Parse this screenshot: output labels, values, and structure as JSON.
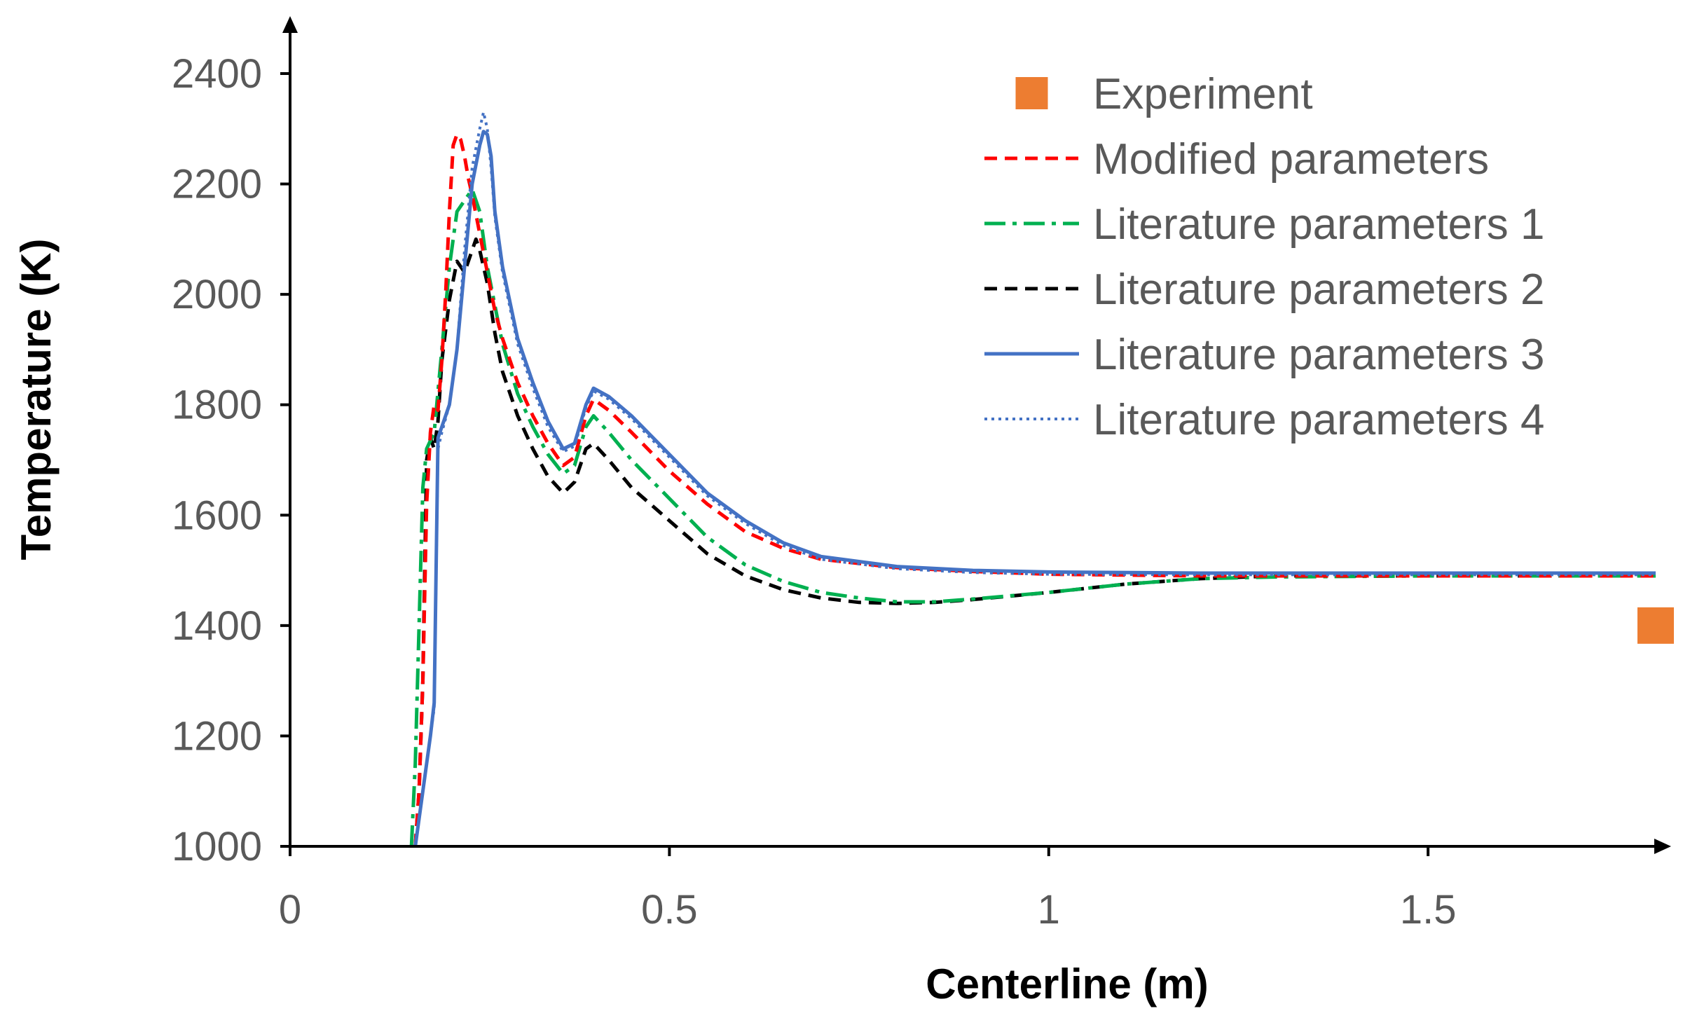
{
  "chart_data": {
    "type": "line",
    "title": "",
    "xlabel": "Centerline (m)",
    "ylabel": "Temperature (K)",
    "xlim": [
      0,
      1.8
    ],
    "ylim": [
      1000,
      2400
    ],
    "x_ticks": [
      0,
      0.5,
      1,
      1.5
    ],
    "x_tick_labels": [
      "0",
      "0.5",
      "1",
      "1.5"
    ],
    "y_ticks": [
      1000,
      1200,
      1400,
      1600,
      1800,
      2000,
      2200,
      2400
    ],
    "y_tick_labels": [
      "1000",
      "1200",
      "1400",
      "1600",
      "1800",
      "2000",
      "2200",
      "2400"
    ],
    "grid": false,
    "legend_position": "top-right",
    "experiment": {
      "name": "Experiment",
      "color": "#ED7D31",
      "points": [
        [
          1.8,
          1400
        ]
      ]
    },
    "series": [
      {
        "name": "Modified parameters",
        "color": "#FF0000",
        "style": "dashed",
        "points": [
          [
            0.165,
            1000
          ],
          [
            0.17,
            1100
          ],
          [
            0.175,
            1300
          ],
          [
            0.18,
            1620
          ],
          [
            0.185,
            1750
          ],
          [
            0.19,
            1800
          ],
          [
            0.195,
            1790
          ],
          [
            0.2,
            1880
          ],
          [
            0.205,
            2000
          ],
          [
            0.21,
            2150
          ],
          [
            0.215,
            2270
          ],
          [
            0.22,
            2290
          ],
          [
            0.225,
            2280
          ],
          [
            0.23,
            2250
          ],
          [
            0.235,
            2210
          ],
          [
            0.24,
            2180
          ],
          [
            0.25,
            2110
          ],
          [
            0.26,
            2040
          ],
          [
            0.27,
            1970
          ],
          [
            0.28,
            1920
          ],
          [
            0.3,
            1840
          ],
          [
            0.32,
            1780
          ],
          [
            0.34,
            1730
          ],
          [
            0.36,
            1690
          ],
          [
            0.375,
            1705
          ],
          [
            0.39,
            1780
          ],
          [
            0.4,
            1810
          ],
          [
            0.42,
            1790
          ],
          [
            0.45,
            1750
          ],
          [
            0.5,
            1680
          ],
          [
            0.55,
            1620
          ],
          [
            0.6,
            1570
          ],
          [
            0.65,
            1540
          ],
          [
            0.7,
            1520
          ],
          [
            0.8,
            1505
          ],
          [
            0.9,
            1498
          ],
          [
            1.0,
            1493
          ],
          [
            1.2,
            1490
          ],
          [
            1.4,
            1490
          ],
          [
            1.6,
            1490
          ],
          [
            1.8,
            1490
          ]
        ]
      },
      {
        "name": "Literature parameters 1",
        "color": "#00B050",
        "style": "dashdot",
        "points": [
          [
            0.16,
            1000
          ],
          [
            0.165,
            1150
          ],
          [
            0.17,
            1400
          ],
          [
            0.175,
            1650
          ],
          [
            0.18,
            1720
          ],
          [
            0.19,
            1750
          ],
          [
            0.2,
            1900
          ],
          [
            0.21,
            2050
          ],
          [
            0.22,
            2150
          ],
          [
            0.23,
            2170
          ],
          [
            0.24,
            2190
          ],
          [
            0.25,
            2150
          ],
          [
            0.26,
            2050
          ],
          [
            0.27,
            1980
          ],
          [
            0.28,
            1910
          ],
          [
            0.3,
            1820
          ],
          [
            0.32,
            1760
          ],
          [
            0.34,
            1710
          ],
          [
            0.36,
            1675
          ],
          [
            0.375,
            1690
          ],
          [
            0.39,
            1760
          ],
          [
            0.4,
            1780
          ],
          [
            0.42,
            1750
          ],
          [
            0.45,
            1700
          ],
          [
            0.5,
            1630
          ],
          [
            0.55,
            1560
          ],
          [
            0.6,
            1510
          ],
          [
            0.65,
            1480
          ],
          [
            0.7,
            1460
          ],
          [
            0.75,
            1450
          ],
          [
            0.8,
            1443
          ],
          [
            0.85,
            1443
          ],
          [
            0.9,
            1448
          ],
          [
            1.0,
            1460
          ],
          [
            1.1,
            1475
          ],
          [
            1.2,
            1485
          ],
          [
            1.3,
            1488
          ],
          [
            1.5,
            1490
          ],
          [
            1.8,
            1490
          ]
        ]
      },
      {
        "name": "Literature parameters 2",
        "color": "#000000",
        "style": "dashed",
        "points": [
          [
            0.165,
            1000
          ],
          [
            0.17,
            1100
          ],
          [
            0.175,
            1300
          ],
          [
            0.18,
            1700
          ],
          [
            0.185,
            1740
          ],
          [
            0.19,
            1720
          ],
          [
            0.195,
            1770
          ],
          [
            0.2,
            1880
          ],
          [
            0.21,
            1990
          ],
          [
            0.22,
            2060
          ],
          [
            0.23,
            2040
          ],
          [
            0.24,
            2080
          ],
          [
            0.245,
            2100
          ],
          [
            0.25,
            2080
          ],
          [
            0.26,
            2020
          ],
          [
            0.27,
            1930
          ],
          [
            0.28,
            1860
          ],
          [
            0.3,
            1780
          ],
          [
            0.32,
            1720
          ],
          [
            0.34,
            1670
          ],
          [
            0.36,
            1640
          ],
          [
            0.375,
            1660
          ],
          [
            0.39,
            1720
          ],
          [
            0.4,
            1730
          ],
          [
            0.42,
            1700
          ],
          [
            0.45,
            1650
          ],
          [
            0.5,
            1590
          ],
          [
            0.55,
            1530
          ],
          [
            0.6,
            1490
          ],
          [
            0.65,
            1465
          ],
          [
            0.7,
            1450
          ],
          [
            0.75,
            1442
          ],
          [
            0.8,
            1440
          ],
          [
            0.85,
            1442
          ],
          [
            0.9,
            1447
          ],
          [
            1.0,
            1460
          ],
          [
            1.1,
            1475
          ],
          [
            1.2,
            1485
          ],
          [
            1.3,
            1490
          ],
          [
            1.5,
            1490
          ],
          [
            1.8,
            1490
          ]
        ]
      },
      {
        "name": "Literature parameters 3",
        "color": "#4472C4",
        "style": "solid",
        "points": [
          [
            0.165,
            1000
          ],
          [
            0.17,
            1050
          ],
          [
            0.175,
            1100
          ],
          [
            0.18,
            1150
          ],
          [
            0.185,
            1200
          ],
          [
            0.19,
            1260
          ],
          [
            0.195,
            1740
          ],
          [
            0.2,
            1760
          ],
          [
            0.21,
            1800
          ],
          [
            0.22,
            1900
          ],
          [
            0.23,
            2050
          ],
          [
            0.24,
            2200
          ],
          [
            0.25,
            2270
          ],
          [
            0.255,
            2295
          ],
          [
            0.26,
            2290
          ],
          [
            0.265,
            2250
          ],
          [
            0.27,
            2150
          ],
          [
            0.28,
            2050
          ],
          [
            0.3,
            1920
          ],
          [
            0.32,
            1840
          ],
          [
            0.34,
            1770
          ],
          [
            0.36,
            1720
          ],
          [
            0.375,
            1730
          ],
          [
            0.39,
            1800
          ],
          [
            0.4,
            1830
          ],
          [
            0.42,
            1815
          ],
          [
            0.45,
            1780
          ],
          [
            0.5,
            1710
          ],
          [
            0.55,
            1640
          ],
          [
            0.6,
            1590
          ],
          [
            0.65,
            1550
          ],
          [
            0.7,
            1525
          ],
          [
            0.8,
            1507
          ],
          [
            0.9,
            1500
          ],
          [
            1.0,
            1497
          ],
          [
            1.2,
            1495
          ],
          [
            1.4,
            1495
          ],
          [
            1.6,
            1495
          ],
          [
            1.8,
            1495
          ]
        ]
      },
      {
        "name": "Literature parameters 4",
        "color": "#4472C4",
        "style": "dotted",
        "points": [
          [
            0.165,
            1000
          ],
          [
            0.17,
            1050
          ],
          [
            0.175,
            1100
          ],
          [
            0.18,
            1150
          ],
          [
            0.185,
            1200
          ],
          [
            0.19,
            1250
          ],
          [
            0.195,
            1720
          ],
          [
            0.2,
            1750
          ],
          [
            0.21,
            1800
          ],
          [
            0.22,
            1900
          ],
          [
            0.23,
            2080
          ],
          [
            0.24,
            2230
          ],
          [
            0.25,
            2300
          ],
          [
            0.255,
            2330
          ],
          [
            0.26,
            2300
          ],
          [
            0.265,
            2230
          ],
          [
            0.27,
            2140
          ],
          [
            0.28,
            2040
          ],
          [
            0.3,
            1910
          ],
          [
            0.32,
            1830
          ],
          [
            0.34,
            1760
          ],
          [
            0.36,
            1715
          ],
          [
            0.375,
            1725
          ],
          [
            0.39,
            1795
          ],
          [
            0.4,
            1825
          ],
          [
            0.42,
            1810
          ],
          [
            0.45,
            1775
          ],
          [
            0.5,
            1705
          ],
          [
            0.55,
            1635
          ],
          [
            0.6,
            1585
          ],
          [
            0.65,
            1545
          ],
          [
            0.7,
            1520
          ],
          [
            0.8,
            1503
          ],
          [
            0.9,
            1496
          ],
          [
            1.0,
            1493
          ],
          [
            1.2,
            1492
          ],
          [
            1.4,
            1492
          ],
          [
            1.6,
            1492
          ],
          [
            1.8,
            1492
          ]
        ]
      }
    ]
  }
}
